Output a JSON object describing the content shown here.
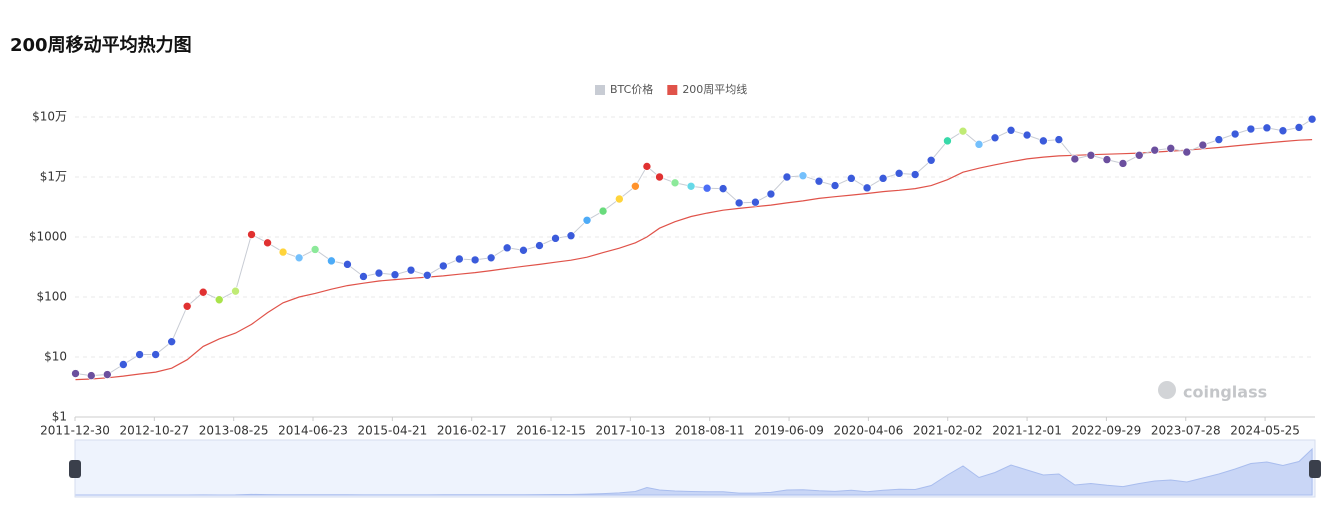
{
  "chart_data": {
    "type": "scatter-line",
    "title": "200周移动平均热力图",
    "watermark": "coinglass",
    "log_y": true,
    "grid": true,
    "x": [
      "2012-01-01",
      "2012-03-01",
      "2012-05-01",
      "2012-07-01",
      "2012-09-01",
      "2012-11-01",
      "2013-01-01",
      "2013-03-01",
      "2013-05-01",
      "2013-07-01",
      "2013-09-01",
      "2013-11-01",
      "2014-01-01",
      "2014-03-01",
      "2014-05-01",
      "2014-07-01",
      "2014-09-01",
      "2014-11-01",
      "2015-01-01",
      "2015-03-01",
      "2015-05-01",
      "2015-07-01",
      "2015-09-01",
      "2015-11-01",
      "2016-01-01",
      "2016-03-01",
      "2016-05-01",
      "2016-07-01",
      "2016-09-01",
      "2016-11-01",
      "2017-01-01",
      "2017-03-01",
      "2017-05-01",
      "2017-07-01",
      "2017-09-01",
      "2017-11-01",
      "2017-12-15",
      "2018-02-01",
      "2018-04-01",
      "2018-06-01",
      "2018-08-01",
      "2018-10-01",
      "2018-12-01",
      "2019-02-01",
      "2019-04-01",
      "2019-06-01",
      "2019-08-01",
      "2019-10-01",
      "2019-12-01",
      "2020-02-01",
      "2020-04-01",
      "2020-06-01",
      "2020-08-01",
      "2020-10-01",
      "2020-12-01",
      "2021-02-01",
      "2021-04-01",
      "2021-06-01",
      "2021-08-01",
      "2021-10-01",
      "2021-12-01",
      "2022-02-01",
      "2022-04-01",
      "2022-06-01",
      "2022-08-01",
      "2022-10-01",
      "2022-12-01",
      "2023-02-01",
      "2023-04-01",
      "2023-06-01",
      "2023-08-01",
      "2023-10-01",
      "2023-12-01",
      "2024-02-01",
      "2024-04-01",
      "2024-06-01",
      "2024-08-01",
      "2024-10-01",
      "2024-11-20"
    ],
    "xlim": [
      "2011-12-30",
      "2024-12-01"
    ],
    "xticks": [
      "2011-12-30",
      "2012-10-27",
      "2013-08-25",
      "2014-06-23",
      "2015-04-21",
      "2016-02-17",
      "2016-12-15",
      "2017-10-13",
      "2018-08-11",
      "2019-06-09",
      "2020-04-06",
      "2021-02-02",
      "2021-12-01",
      "2022-09-29",
      "2023-07-28",
      "2024-05-25"
    ],
    "ylim": [
      1,
      100000
    ],
    "yticks": [
      {
        "value": 1,
        "label": "$1"
      },
      {
        "value": 10,
        "label": "$10"
      },
      {
        "value": 100,
        "label": "$100"
      },
      {
        "value": 1000,
        "label": "$1000"
      },
      {
        "value": 10000,
        "label": "$1万"
      },
      {
        "value": 100000,
        "label": "$10万"
      }
    ],
    "series": [
      {
        "name": "BTC价格",
        "color": "#c8ccd4",
        "values": [
          5.3,
          4.9,
          5.1,
          7.5,
          11,
          11,
          18,
          70,
          120,
          90,
          125,
          1100,
          800,
          560,
          450,
          620,
          400,
          350,
          220,
          250,
          235,
          280,
          230,
          330,
          430,
          415,
          450,
          660,
          600,
          720,
          950,
          1050,
          1900,
          2700,
          4300,
          7000,
          15000,
          10000,
          8000,
          7000,
          6500,
          6400,
          3700,
          3800,
          5200,
          10000,
          10500,
          8500,
          7200,
          9500,
          6600,
          9500,
          11500,
          11000,
          19000,
          40000,
          58000,
          35000,
          45000,
          60000,
          50000,
          40000,
          42000,
          20000,
          23000,
          19500,
          16800,
          23000,
          28000,
          30000,
          26000,
          34000,
          42000,
          52000,
          63000,
          66000,
          59000,
          67000,
          92000
        ],
        "point_colors": [
          "#6b4f9e",
          "#6b4f9e",
          "#6b4f9e",
          "#3b5bdb",
          "#3b5bdb",
          "#3b5bdb",
          "#3b5bdb",
          "#e03131",
          "#e03131",
          "#a9e34b",
          "#c0eb75",
          "#e03131",
          "#e03131",
          "#ffd43b",
          "#74c0fc",
          "#8ce99a",
          "#4dabf7",
          "#3b5bdb",
          "#3b5bdb",
          "#3b5bdb",
          "#3b5bdb",
          "#3b5bdb",
          "#3b5bdb",
          "#3b5bdb",
          "#3b5bdb",
          "#3b5bdb",
          "#3b5bdb",
          "#3b5bdb",
          "#3b5bdb",
          "#3b5bdb",
          "#3b5bdb",
          "#3b5bdb",
          "#4dabf7",
          "#69db7c",
          "#ffd43b",
          "#ff922b",
          "#e03131",
          "#e03131",
          "#8ce99a",
          "#66d9e8",
          "#4c6ef5",
          "#3b5bdb",
          "#3b5bdb",
          "#3b5bdb",
          "#3b5bdb",
          "#3b5bdb",
          "#74c0fc",
          "#3b5bdb",
          "#3b5bdb",
          "#3b5bdb",
          "#3b5bdb",
          "#3b5bdb",
          "#3b5bdb",
          "#3b5bdb",
          "#3b5bdb",
          "#38d9a9",
          "#c0eb75",
          "#74c0fc",
          "#3b5bdb",
          "#3b5bdb",
          "#3b5bdb",
          "#3b5bdb",
          "#3b5bdb",
          "#6b4f9e",
          "#6b4f9e",
          "#6b4f9e",
          "#6b4f9e",
          "#6b4f9e",
          "#6b4f9e",
          "#6b4f9e",
          "#6b4f9e",
          "#6b4f9e",
          "#3b5bdb",
          "#3b5bdb",
          "#3b5bdb",
          "#3b5bdb",
          "#3b5bdb",
          "#3b5bdb",
          "#3b5bdb"
        ]
      },
      {
        "name": "200周平均线",
        "color": "#e0534a",
        "values": [
          4.2,
          4.3,
          4.5,
          4.8,
          5.2,
          5.6,
          6.5,
          9,
          15,
          20,
          25,
          35,
          55,
          80,
          100,
          115,
          135,
          155,
          170,
          185,
          195,
          205,
          215,
          225,
          240,
          255,
          275,
          300,
          325,
          350,
          380,
          410,
          460,
          550,
          650,
          800,
          1000,
          1400,
          1800,
          2200,
          2500,
          2800,
          3000,
          3200,
          3400,
          3700,
          4000,
          4400,
          4700,
          5000,
          5300,
          5700,
          6000,
          6400,
          7200,
          9000,
          12000,
          14000,
          16000,
          18000,
          20000,
          21500,
          22500,
          23000,
          23500,
          24000,
          24500,
          25000,
          26000,
          27000,
          28000,
          29500,
          31000,
          33000,
          35000,
          37000,
          39000,
          41000,
          42000
        ]
      }
    ]
  }
}
